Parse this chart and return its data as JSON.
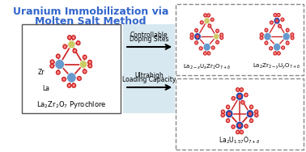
{
  "title_line1": "Uranium Immobilization via",
  "title_line2": "Molten Salt Method",
  "title_color": "#3366CC",
  "title_fontsize": 9,
  "left_label": "La₂Zr₂O⁷ Pyrochlore",
  "arrow1_text_line1": "Controllable",
  "arrow1_text_line2": "Doping Sites",
  "arrow2_text_line1": "Ultrahigh",
  "arrow2_text_line2": "Loading Capacity",
  "top_right_label": "La₂₋xUxZr₂O₇₊δ",
  "top_right2_label": "La₂Zr₂₋yUyO₇₊δ",
  "bottom_right_label": "La₂U₁.₅₇O₇₊δ",
  "color_La": "#6699CC",
  "color_Zr": "#CCCC66",
  "color_U": "#2244AA",
  "color_O": "#CC2222",
  "color_O_inner": "#EE4444",
  "bg_left": "#E8F0F8",
  "bg_title": "white",
  "border_color": "#888888",
  "arrow_color": "#222222"
}
